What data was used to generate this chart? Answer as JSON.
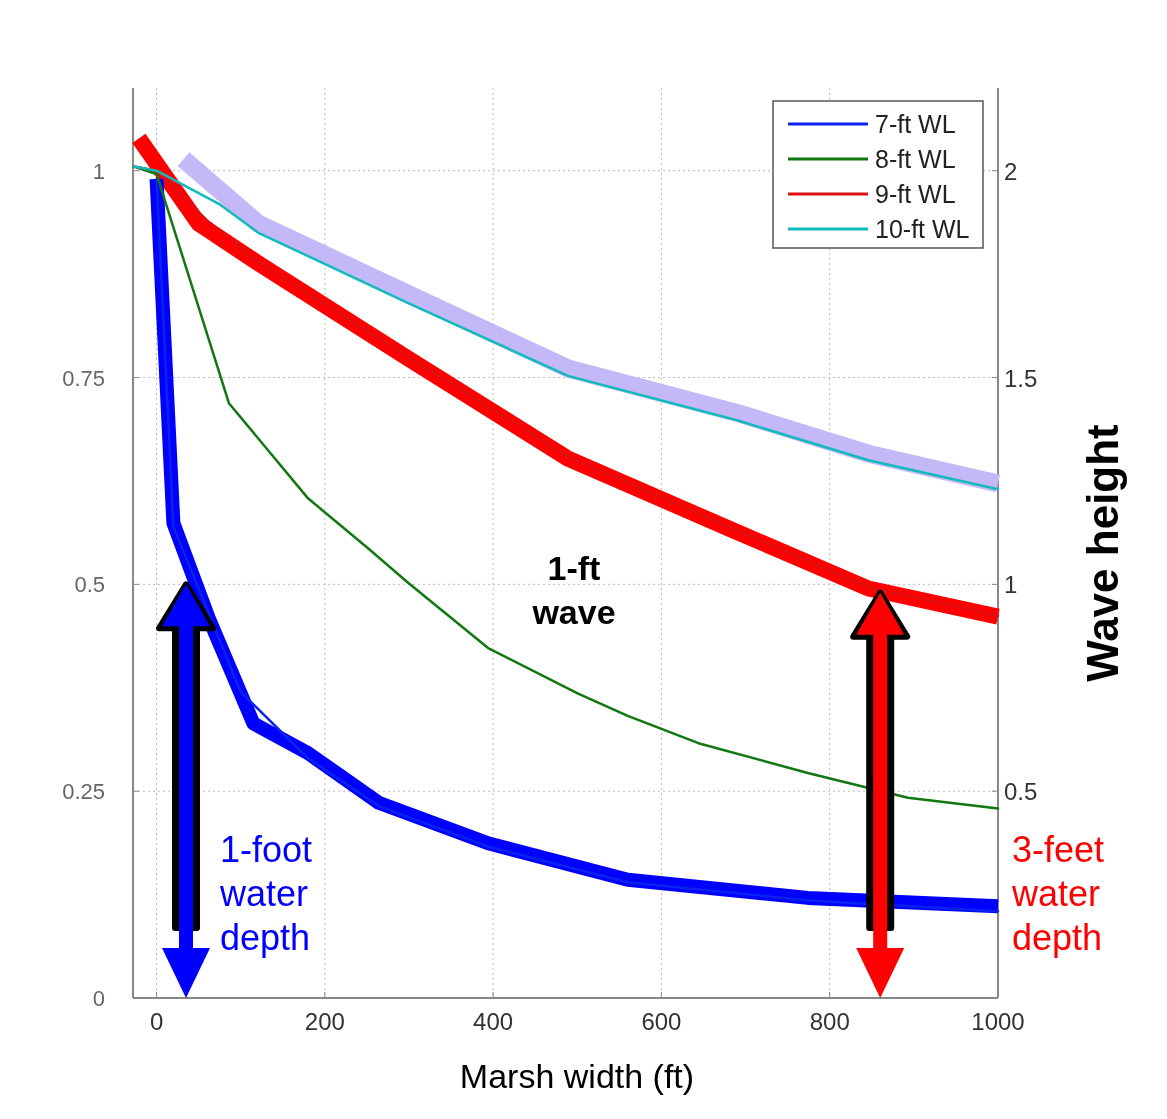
{
  "chart_data": {
    "type": "line",
    "xlabel": "Marsh width (ft)",
    "y2label": "Wave height",
    "xlim": [
      -28,
      1000
    ],
    "xticks": [
      0,
      200,
      400,
      600,
      800,
      1000
    ],
    "ylim": [
      0,
      1.1
    ],
    "yticks": [
      0,
      0.25,
      0.5,
      0.75,
      1
    ],
    "y2lim": [
      0,
      2.2
    ],
    "y2ticks": [
      0.5,
      1,
      1.5,
      2
    ],
    "grid": true,
    "legend": "top right",
    "line_style": "solid",
    "annotations": [
      "1-ft wave",
      "1-foot water depth",
      "3-feet water depth"
    ],
    "series": [
      {
        "color": "#c4b8f8",
        "x": [
          32,
          121,
          299,
          489,
          691,
          846,
          1000
        ],
        "values": [
          1.014,
          0.936,
          0.851,
          0.761,
          0.707,
          0.658,
          0.622
        ]
      },
      {
        "color": "#ff0000",
        "x": [
          -21,
          50,
          121,
          299,
          489,
          679,
          846,
          1000
        ],
        "values": [
          1.039,
          0.936,
          0.888,
          0.773,
          0.652,
          0.568,
          0.495,
          0.461
        ]
      },
      {
        "color": "#0000ff",
        "x": [
          0,
          20,
          62,
          115,
          180,
          264,
          394,
          560,
          774,
          1000
        ],
        "values": [
          0.99,
          0.574,
          0.459,
          0.332,
          0.296,
          0.236,
          0.187,
          0.143,
          0.121,
          0.111
        ]
      },
      {
        "name": "7-ft WL",
        "color": "#0a22ee",
        "x": [
          0,
          20,
          100,
          180,
          264,
          394,
          560,
          774,
          1000
        ],
        "values": [
          0.99,
          0.57,
          0.37,
          0.29,
          0.232,
          0.183,
          0.14,
          0.118,
          0.105
        ]
      },
      {
        "name": "8-ft WL",
        "color": "#117711",
        "x": [
          -27,
          0,
          86,
          180,
          252,
          300,
          394,
          501,
          560,
          644,
          774,
          893,
          1000
        ],
        "values": [
          1.005,
          0.996,
          0.719,
          0.604,
          0.543,
          0.501,
          0.423,
          0.368,
          0.341,
          0.308,
          0.272,
          0.242,
          0.229
        ]
      },
      {
        "name": "9-ft WL",
        "color": "#dd1111",
        "x": [
          -27,
          0,
          60,
          121,
          299,
          489,
          679,
          846,
          1000
        ],
        "values": [
          1.005,
          1.0,
          0.94,
          0.89,
          0.775,
          0.655,
          0.57,
          0.497,
          0.462
        ]
      },
      {
        "name": "10-ft WL",
        "color": "#11bbbb",
        "x": [
          -27,
          0,
          74,
          121,
          299,
          489,
          691,
          846,
          1000
        ],
        "values": [
          1.005,
          1.0,
          0.96,
          0.925,
          0.84,
          0.752,
          0.698,
          0.65,
          0.615
        ]
      }
    ]
  }
}
